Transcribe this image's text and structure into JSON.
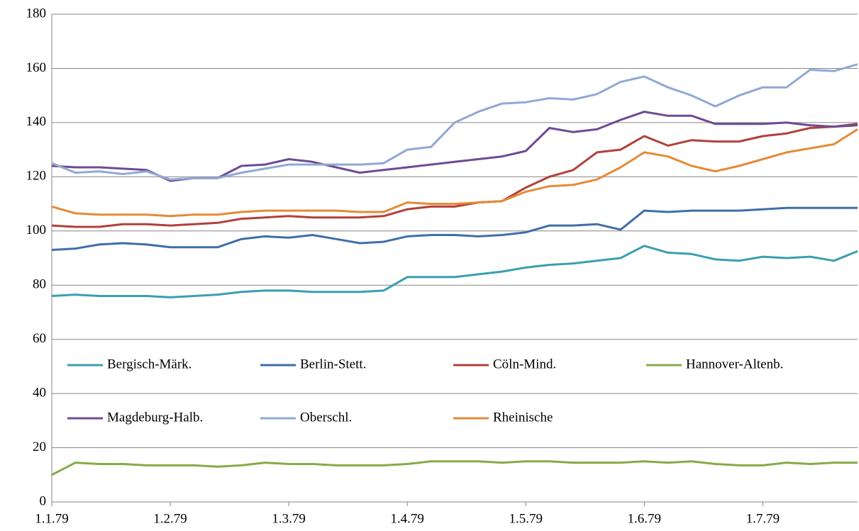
{
  "chart_data": {
    "type": "line",
    "categories": [
      "1.1.79",
      null,
      null,
      null,
      null,
      "1.2.79",
      null,
      null,
      null,
      null,
      "1.3.79",
      null,
      null,
      null,
      null,
      "1.4.79",
      null,
      null,
      null,
      null,
      "1.5.79",
      null,
      null,
      null,
      null,
      "1.6.79",
      null,
      null,
      null,
      null,
      "1.7.79",
      null,
      null,
      null,
      null
    ],
    "series": [
      {
        "name": "Bergisch-Märk.",
        "color": "#3a9fb0",
        "values": [
          76,
          76.5,
          76,
          76,
          76,
          75.5,
          76,
          76.5,
          77.5,
          78,
          78,
          77.5,
          77.5,
          77.5,
          78,
          83,
          83,
          83,
          84,
          85,
          86.5,
          87.5,
          88,
          89,
          90,
          94.5,
          92,
          91.5,
          89.5,
          89,
          90.5,
          90,
          90.5,
          89,
          92.5
        ]
      },
      {
        "name": "Berlin-Stett.",
        "color": "#3f6ea8",
        "values": [
          93,
          93.5,
          95,
          95.5,
          95,
          94,
          94,
          94,
          97,
          98,
          97.5,
          98.5,
          97,
          95.5,
          96,
          98,
          98.5,
          98.5,
          98,
          98.5,
          99.5,
          102,
          102,
          102.5,
          100.5,
          107.5,
          107,
          107.5,
          107.5,
          107.5,
          108,
          108.5,
          108.5,
          108.5,
          108.5
        ]
      },
      {
        "name": "Cöln-Mind.",
        "color": "#b2403a",
        "values": [
          102,
          101.5,
          101.5,
          102.5,
          102.5,
          102,
          102.5,
          103,
          104.5,
          105,
          105.5,
          105,
          105,
          105,
          105.5,
          108,
          109,
          109,
          110.5,
          111,
          116,
          120,
          122.5,
          129,
          130,
          135,
          131.5,
          133.5,
          133,
          133,
          135,
          136,
          138,
          138.5,
          139.5
        ]
      },
      {
        "name": "Hannover-Altenb.",
        "color": "#86ab45",
        "values": [
          10,
          14.5,
          14,
          14,
          13.5,
          13.5,
          13.5,
          13,
          13.5,
          14.5,
          14,
          14,
          13.5,
          13.5,
          13.5,
          14,
          15,
          15,
          15,
          14.5,
          15,
          15,
          14.5,
          14.5,
          14.5,
          15,
          14.5,
          15,
          14,
          13.5,
          13.5,
          14.5,
          14,
          14.5,
          14.5
        ]
      },
      {
        "name": "Magdeburg-Halb.",
        "color": "#6d4b94",
        "values": [
          124,
          123.5,
          123.5,
          123,
          122.5,
          118.5,
          119.5,
          119.5,
          124,
          124.5,
          126.5,
          125.5,
          123.5,
          121.5,
          122.5,
          123.5,
          124.5,
          125.5,
          126.5,
          127.5,
          129.5,
          138,
          136.5,
          137.5,
          141,
          144,
          142.5,
          142.5,
          139.5,
          139.5,
          139.5,
          140,
          139,
          138.5,
          139
        ]
      },
      {
        "name": "Oberschl.",
        "color": "#8fa9d4",
        "values": [
          125,
          121.5,
          122,
          121,
          122,
          119,
          119.5,
          119.5,
          121.5,
          123,
          124.5,
          124.5,
          124.5,
          124.5,
          125,
          130,
          131,
          140,
          144,
          147,
          147.5,
          149,
          148.5,
          150.5,
          155,
          157,
          153,
          150,
          146,
          150,
          153,
          153,
          159.5,
          159,
          161.5
        ]
      },
      {
        "name": "Rheinische",
        "color": "#e58a35",
        "values": [
          109,
          106.5,
          106,
          106,
          106,
          105.5,
          106,
          106,
          107,
          107.5,
          107.5,
          107.5,
          107.5,
          107,
          107,
          110.5,
          110,
          110,
          110.5,
          111,
          114.5,
          116.5,
          117,
          119,
          123.5,
          129,
          127.5,
          124,
          122,
          124,
          126.5,
          129,
          130.5,
          132,
          137.5
        ]
      }
    ],
    "ylim": [
      0,
      180
    ],
    "yticks": [
      0,
      20,
      40,
      60,
      80,
      100,
      120,
      140,
      160,
      180
    ],
    "grid": true,
    "legend": "lower left"
  }
}
